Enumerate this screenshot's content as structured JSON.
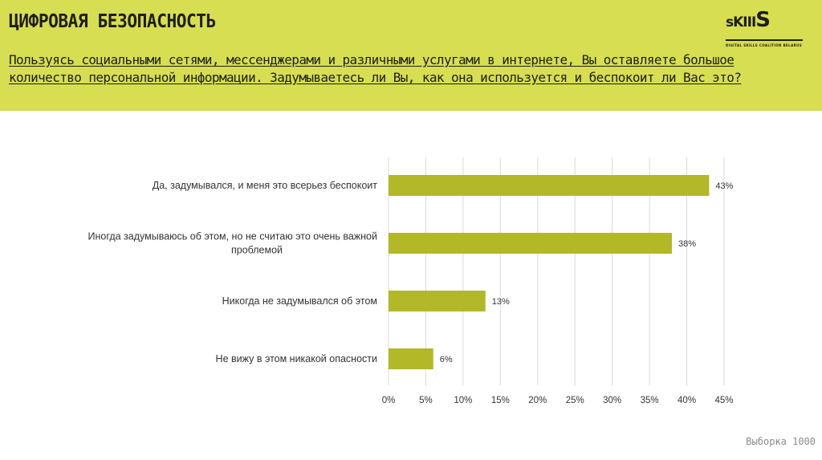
{
  "header": {
    "title": "ЦИФРОВАЯ БЕЗОПАСНОСТЬ",
    "question": "Пользуясь социальными сетями, мессенджерами и различными услугами в интернете, Вы оставляете большое количество персональной информации. Задумываетесь ли Вы, как она используется и беспокоит ли Вас это?"
  },
  "logo": {
    "word_prefix": "s",
    "word_mid": "KIII",
    "word_suffix": "S",
    "tagline": "DIGITAL SKILLS COALITION BELARUS"
  },
  "footer": {
    "sample": "Выборка 1000"
  },
  "colors": {
    "header_bg": "#d7de52",
    "bar": "#b2b827",
    "grid": "#d9d9d9"
  },
  "chart_data": {
    "type": "bar",
    "orientation": "horizontal",
    "categories": [
      [
        "Да, задумывался, и меня это всерьез беспокоит"
      ],
      [
        "Иногда задумываюсь об этом, но не считаю это очень важной",
        "проблемой"
      ],
      [
        "Никогда не задумывался об этом"
      ],
      [
        "Не вижу в этом никакой опасности"
      ]
    ],
    "values": [
      43,
      38,
      13,
      6
    ],
    "data_labels": [
      "43%",
      "38%",
      "13%",
      "6%"
    ],
    "xlim": [
      0,
      45
    ],
    "x_ticks": [
      0,
      5,
      10,
      15,
      20,
      25,
      30,
      35,
      40,
      45
    ],
    "x_tick_labels": [
      "0%",
      "5%",
      "10%",
      "15%",
      "20%",
      "25%",
      "30%",
      "35%",
      "40%",
      "45%"
    ],
    "grid": true,
    "legend": "none"
  }
}
